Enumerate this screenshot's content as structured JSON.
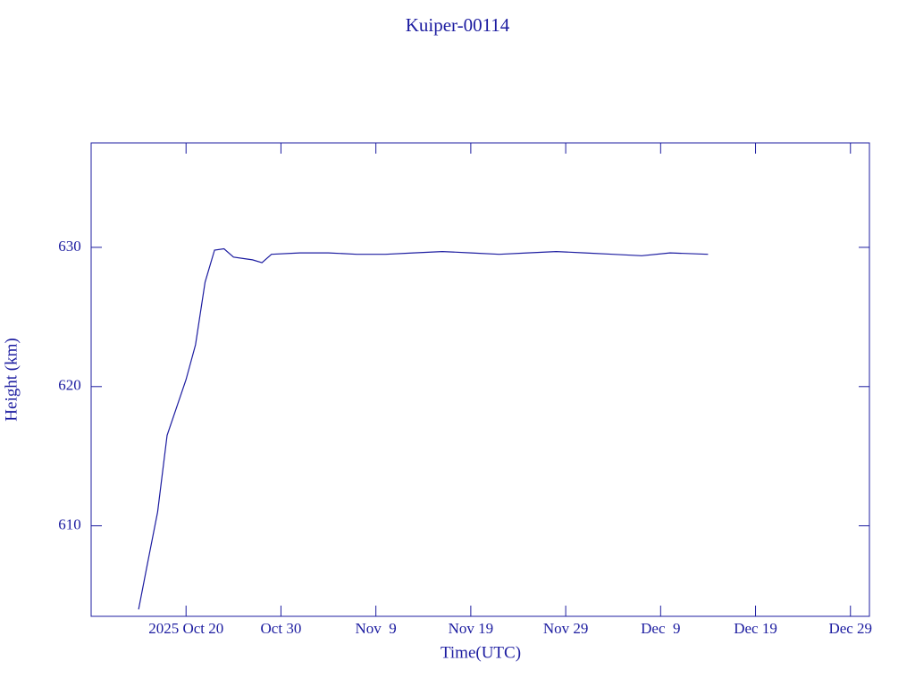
{
  "chart_data": {
    "type": "line",
    "title": "Kuiper-00114",
    "x_label": "Time(UTC)",
    "y_label": "Height (km)",
    "color": "#1c1ca0",
    "x": [
      "2025-10-15",
      "2025-10-16",
      "2025-10-17",
      "2025-10-18",
      "2025-10-19",
      "2025-10-20",
      "2025-10-21",
      "2025-10-22",
      "2025-10-23",
      "2025-10-24",
      "2025-10-25",
      "2025-10-26",
      "2025-10-27",
      "2025-10-28",
      "2025-10-29",
      "2025-11-01",
      "2025-11-04",
      "2025-11-07",
      "2025-11-10",
      "2025-11-13",
      "2025-11-16",
      "2025-11-19",
      "2025-11-22",
      "2025-11-25",
      "2025-11-28",
      "2025-12-01",
      "2025-12-04",
      "2025-12-07",
      "2025-12-10",
      "2025-12-14"
    ],
    "series": [
      {
        "name": "Height",
        "values": [
          604.0,
          607.5,
          611.0,
          616.5,
          618.5,
          620.5,
          623.0,
          627.5,
          629.8,
          629.9,
          629.3,
          629.2,
          629.1,
          628.9,
          629.5,
          629.6,
          629.6,
          629.5,
          629.5,
          629.6,
          629.7,
          629.6,
          629.5,
          629.6,
          629.7,
          629.6,
          629.5,
          629.4,
          629.6,
          629.5
        ]
      }
    ],
    "xlim": [
      "2025-10-10",
      "2025-12-31"
    ],
    "xticks": [
      {
        "value": "2025-10-20",
        "label": "2025 Oct 20"
      },
      {
        "value": "2025-10-30",
        "label": "Oct 30"
      },
      {
        "value": "2025-11-09",
        "label": "Nov  9"
      },
      {
        "value": "2025-11-19",
        "label": "Nov 19"
      },
      {
        "value": "2025-11-29",
        "label": "Nov 29"
      },
      {
        "value": "2025-12-09",
        "label": "Dec  9"
      },
      {
        "value": "2025-12-19",
        "label": "Dec 19"
      },
      {
        "value": "2025-12-29",
        "label": "Dec 29"
      }
    ],
    "ylim": [
      603.5,
      637.5
    ],
    "yticks": [
      610,
      620,
      630
    ]
  }
}
